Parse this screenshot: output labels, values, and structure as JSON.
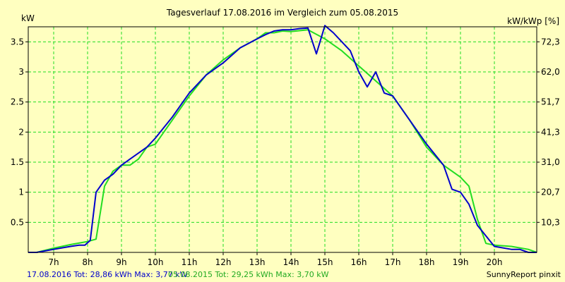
{
  "colors": {
    "background": "#ffffc0",
    "plot_bg": "#ffffc0",
    "grid": "#22dd22",
    "series_2016": "#0000cc",
    "series_2015": "#22dd22",
    "axis": "#000000"
  },
  "footer": {
    "left_2016": "17.08.2016 Tot: 28,86 kWh Max: 3,77 kW",
    "left_2015": "05.08.2015 Tot: 29,25 kWh Max: 3,70 kW",
    "right": "SunnyReport pinxit"
  },
  "chart_data": {
    "type": "line",
    "title": "Tagesverlauf 17.08.2016 im Vergleich zum 05.08.2015",
    "ylabel_left": "kW",
    "ylabel_right": "kW/kWp [%]",
    "xlim": [
      6.25,
      21.25
    ],
    "ylim": [
      0,
      3.75
    ],
    "x_ticks": [
      7,
      8,
      9,
      10,
      11,
      12,
      13,
      14,
      15,
      16,
      17,
      18,
      19,
      20
    ],
    "x_tick_labels": [
      "7h",
      "8h",
      "9h",
      "10h",
      "11h",
      "12h",
      "13h",
      "14h",
      "15h",
      "16h",
      "17h",
      "18h",
      "19h",
      "20h"
    ],
    "y_ticks_left": [
      0.5,
      1,
      1.5,
      2,
      2.5,
      3,
      3.5
    ],
    "y_tick_labels_left": [
      "0.5",
      "1",
      "1.5",
      "2",
      "2.5",
      "3",
      "3.5"
    ],
    "y_ticks_right": [
      0.5,
      1.0,
      1.5,
      2.0,
      2.5,
      3.0,
      3.5
    ],
    "y_tick_labels_right": [
      "10,3",
      "20,7",
      "31,0",
      "41,3",
      "51,7",
      "62,0",
      "72,3"
    ],
    "grid": true,
    "series": [
      {
        "name": "17.08.2016",
        "color": "#0000cc",
        "x": [
          6.25,
          6.5,
          7.0,
          7.5,
          7.75,
          7.92,
          8.08,
          8.25,
          8.5,
          8.75,
          9.0,
          9.25,
          9.5,
          9.75,
          10.0,
          10.5,
          11.0,
          11.5,
          12.0,
          12.5,
          13.0,
          13.25,
          13.5,
          13.75,
          14.0,
          14.25,
          14.5,
          14.75,
          15.0,
          15.25,
          15.5,
          15.75,
          16.0,
          16.25,
          16.5,
          16.75,
          17.0,
          17.5,
          18.0,
          18.5,
          18.75,
          19.0,
          19.25,
          19.5,
          20.0,
          20.5,
          20.75,
          21.0,
          21.25
        ],
        "values": [
          0.0,
          0.0,
          0.05,
          0.1,
          0.12,
          0.12,
          0.2,
          1.0,
          1.2,
          1.3,
          1.45,
          1.55,
          1.65,
          1.75,
          1.9,
          2.25,
          2.65,
          2.95,
          3.15,
          3.4,
          3.55,
          3.62,
          3.68,
          3.7,
          3.7,
          3.72,
          3.73,
          3.3,
          3.77,
          3.65,
          3.5,
          3.35,
          3.0,
          2.75,
          3.0,
          2.65,
          2.6,
          2.2,
          1.8,
          1.45,
          1.05,
          1.0,
          0.8,
          0.45,
          0.1,
          0.05,
          0.05,
          0.0,
          0.0
        ]
      },
      {
        "name": "05.08.2015",
        "color": "#22dd22",
        "x": [
          6.25,
          6.5,
          7.0,
          7.5,
          8.0,
          8.25,
          8.5,
          8.75,
          9.0,
          9.25,
          9.5,
          9.75,
          10.0,
          10.5,
          11.0,
          11.5,
          12.0,
          12.5,
          13.0,
          13.25,
          13.5,
          13.75,
          14.0,
          14.5,
          15.0,
          15.5,
          16.0,
          16.5,
          17.0,
          17.5,
          18.0,
          18.5,
          19.0,
          19.25,
          19.5,
          19.75,
          20.0,
          20.5,
          21.0,
          21.25
        ],
        "values": [
          0.0,
          0.0,
          0.07,
          0.13,
          0.18,
          0.22,
          1.1,
          1.35,
          1.45,
          1.45,
          1.55,
          1.75,
          1.8,
          2.2,
          2.6,
          2.95,
          3.2,
          3.4,
          3.55,
          3.65,
          3.65,
          3.68,
          3.67,
          3.7,
          3.55,
          3.35,
          3.1,
          2.85,
          2.6,
          2.2,
          1.75,
          1.45,
          1.25,
          1.1,
          0.55,
          0.15,
          0.12,
          0.1,
          0.05,
          0.0
        ]
      }
    ]
  }
}
